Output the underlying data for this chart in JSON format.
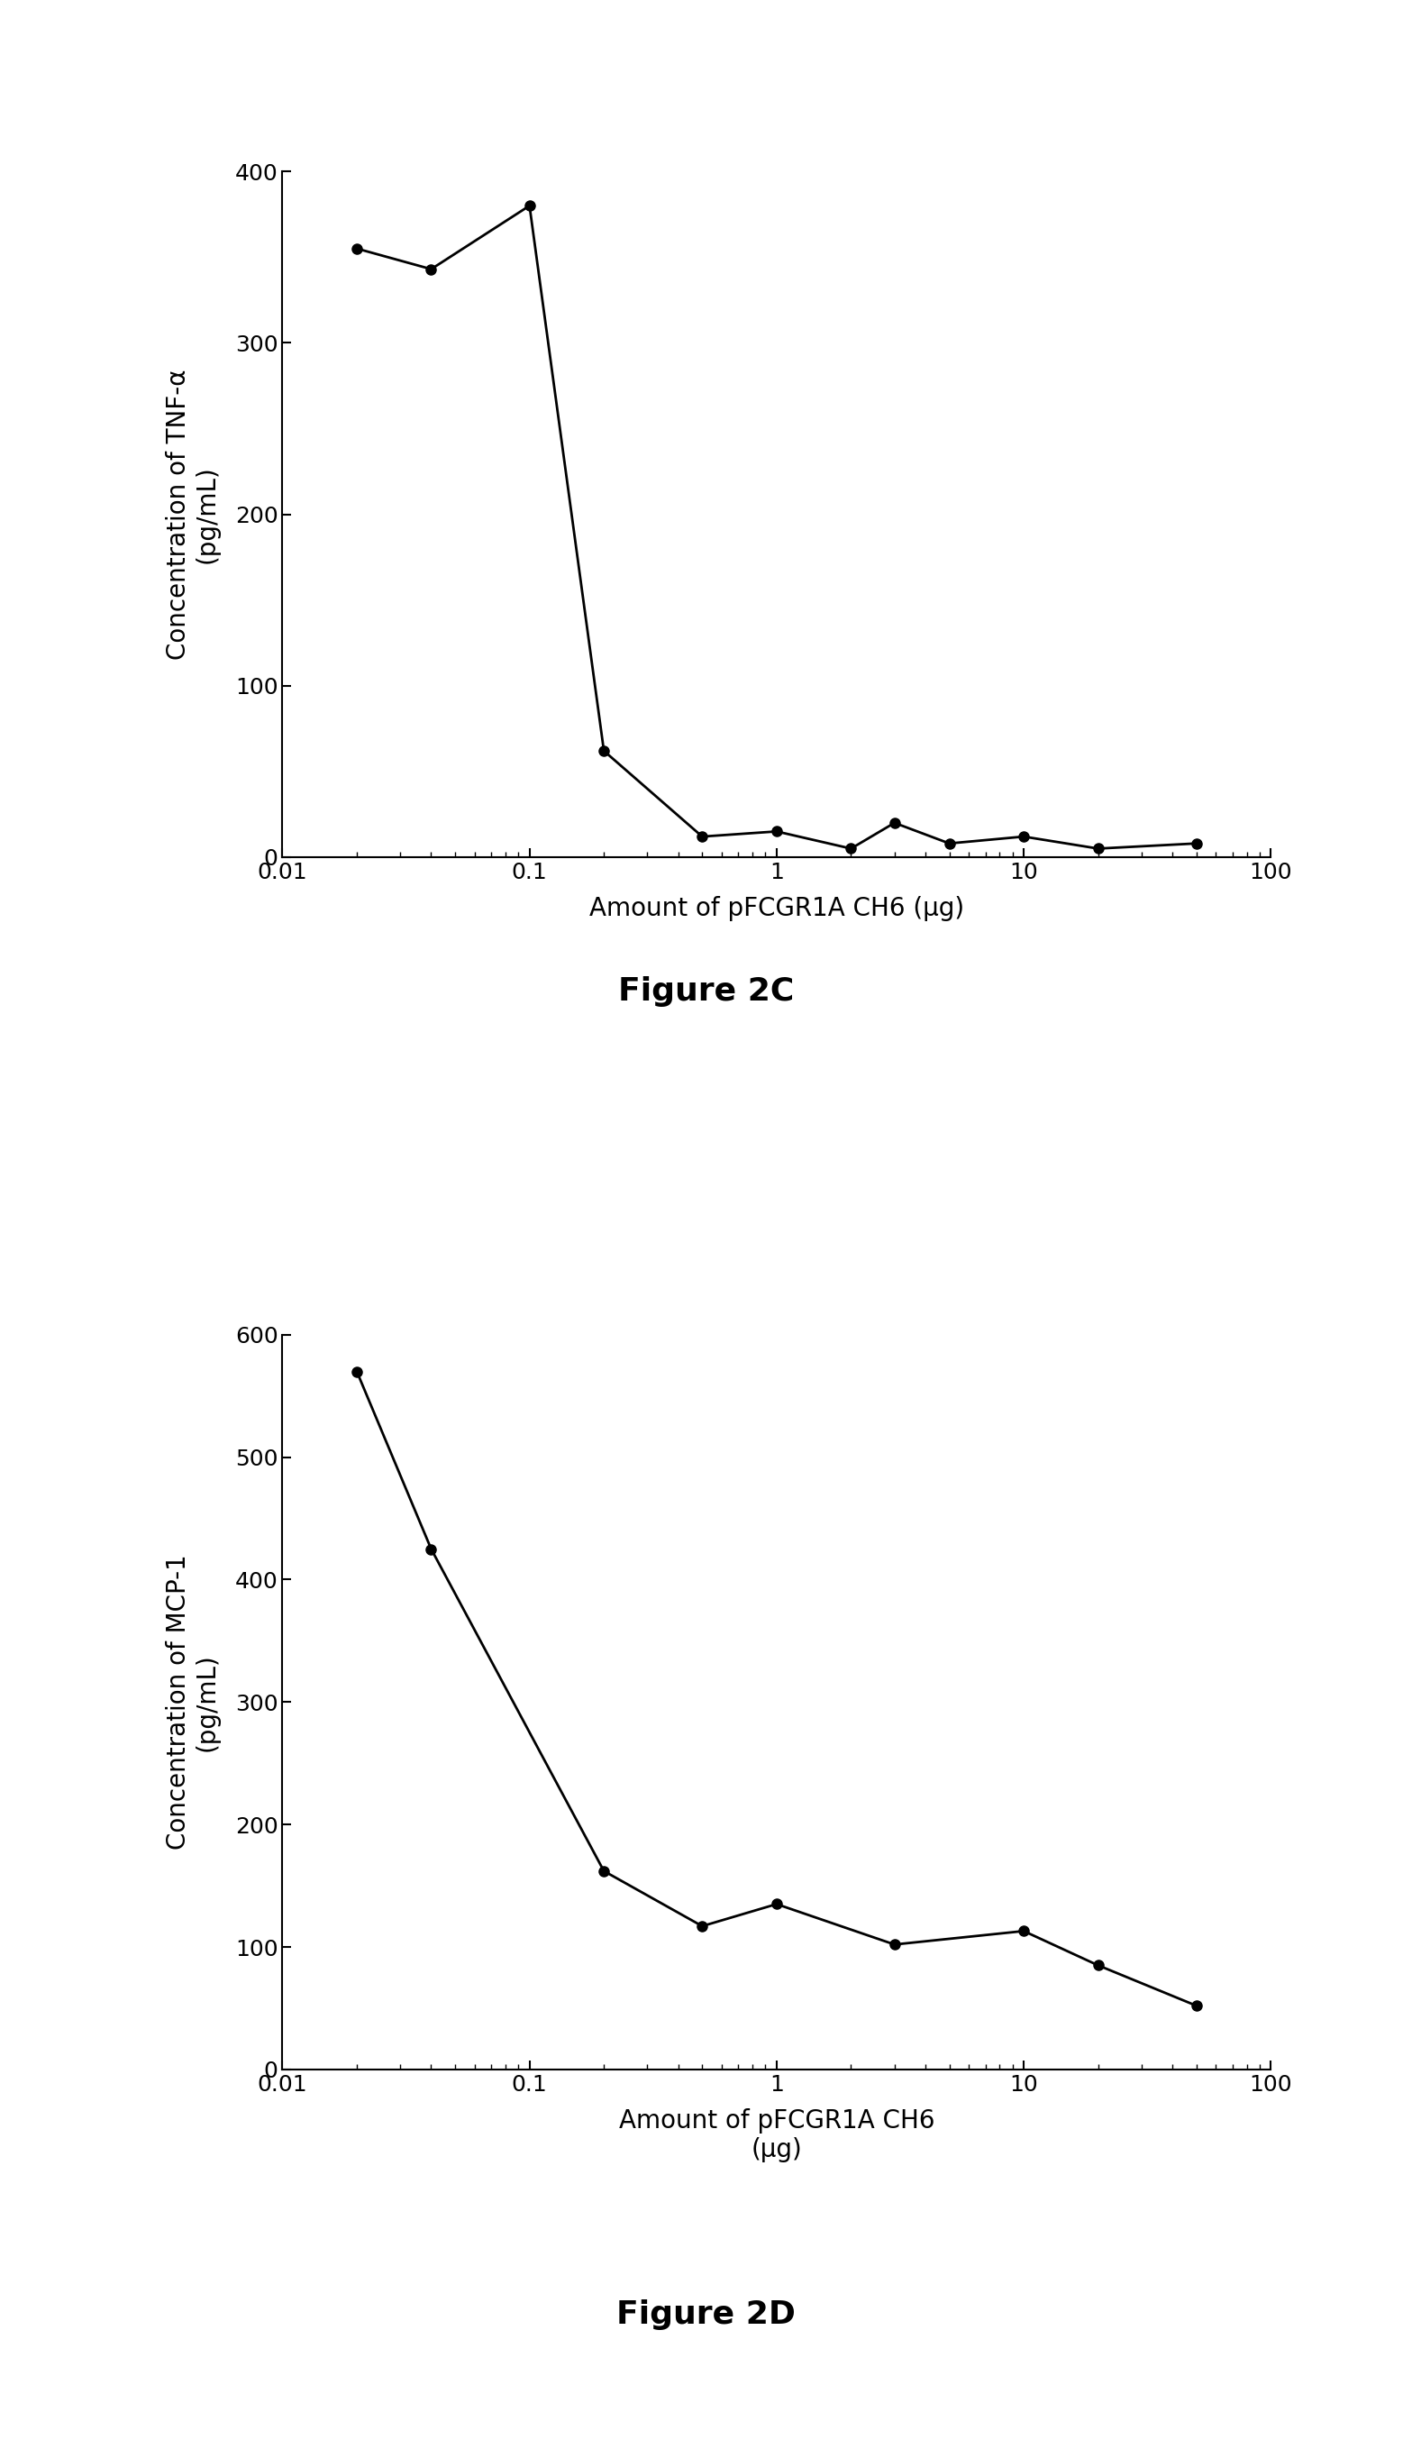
{
  "fig2c": {
    "x": [
      0.02,
      0.04,
      0.1,
      0.2,
      0.5,
      1.0,
      2.0,
      3.0,
      5.0,
      10.0,
      20.0,
      50.0
    ],
    "y": [
      355,
      343,
      380,
      62,
      12,
      15,
      5,
      20,
      8,
      12,
      5,
      8
    ],
    "ylabel_line1": "Concentration of TNF-α",
    "ylabel_line2": "(pg/mL)",
    "xlabel": "Amount of pFCGR1A CH6 (μg)",
    "ylim": [
      0,
      400
    ],
    "yticks": [
      0,
      100,
      200,
      300,
      400
    ],
    "figure_label": "Figure 2C"
  },
  "fig2d": {
    "x": [
      0.02,
      0.04,
      0.2,
      0.5,
      1.0,
      3.0,
      10.0,
      20.0,
      50.0
    ],
    "y": [
      570,
      425,
      162,
      117,
      135,
      102,
      113,
      85,
      52
    ],
    "ylabel_line1": "Concentration of MCP-1",
    "ylabel_line2": "(pg/mL)",
    "xlabel_line1": "Amount of pFCGR1A CH6",
    "xlabel_line2": "(μg)",
    "ylim": [
      0,
      600
    ],
    "yticks": [
      0,
      100,
      200,
      300,
      400,
      500,
      600
    ],
    "figure_label": "Figure 2D"
  },
  "line_color": "#000000",
  "marker_color": "#000000",
  "marker_style": "o",
  "marker_size": 8,
  "linewidth": 2.0,
  "bg_color": "#ffffff",
  "xlim": [
    0.01,
    100
  ],
  "xticks": [
    0.01,
    0.1,
    1,
    10,
    100
  ],
  "xticklabels": [
    "0.01",
    "0.1",
    "1",
    "10",
    "100"
  ],
  "label_fontsize": 20,
  "tick_fontsize": 18,
  "figure_label_fontsize": 26
}
